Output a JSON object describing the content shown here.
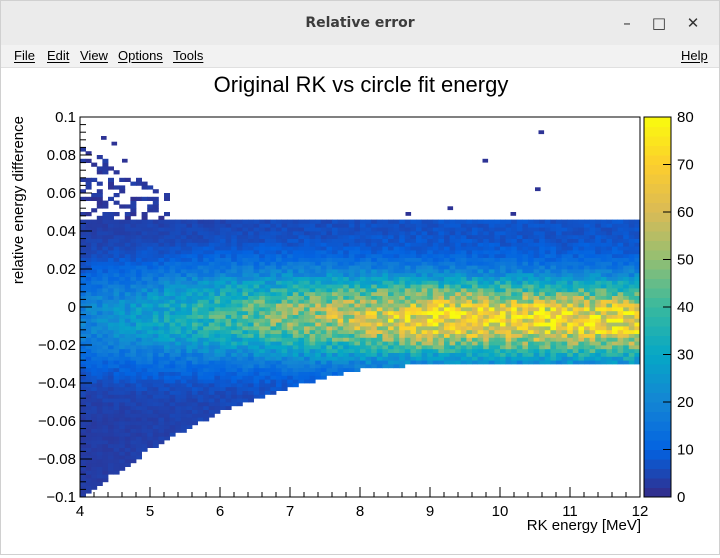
{
  "window": {
    "title": "Relative error",
    "controls": {
      "minimize": "–",
      "maximize": "□",
      "close": "✕"
    }
  },
  "menu": {
    "file": "File",
    "edit": "Edit",
    "view": "View",
    "options": "Options",
    "tools": "Tools",
    "help": "Help"
  },
  "chart_data": {
    "type": "heatmap",
    "title": "Original RK vs circle fit energy",
    "xlabel": "RK energy [MeV]",
    "ylabel": "relative energy difference",
    "xlim": [
      4,
      12
    ],
    "ylim": [
      -0.1,
      0.1
    ],
    "zlim": [
      0,
      80
    ],
    "x_ticks": [
      "4",
      "5",
      "6",
      "7",
      "8",
      "9",
      "10",
      "11",
      "12"
    ],
    "y_ticks": [
      "0.1",
      "0.08",
      "0.06",
      "0.04",
      "0.02",
      "0",
      "−0.02",
      "−0.04",
      "−0.06",
      "−0.08",
      "−0.1"
    ],
    "z_ticks": [
      "80",
      "70",
      "60",
      "50",
      "40",
      "30",
      "20",
      "10",
      "0"
    ],
    "nbins_x": 100,
    "nbins_y": 100,
    "colormap": "parula",
    "colors": [
      "#352a87",
      "#0363e1",
      "#1485d4",
      "#06a7c6",
      "#38b99e",
      "#92bf73",
      "#d9ba56",
      "#fcce2e",
      "#f9fb0e"
    ],
    "ridge": {
      "description_points_x": [
        4,
        6,
        8,
        10,
        12
      ],
      "center_y": [
        -0.006,
        -0.004,
        -0.005,
        -0.006,
        -0.007
      ],
      "peak_count": 62
    },
    "band_edges": {
      "upper_y": [
        0.045,
        0.045
      ],
      "lower_y_at_x": [
        [
          4,
          -0.1
        ],
        [
          5,
          -0.075
        ],
        [
          6,
          -0.055
        ],
        [
          7,
          -0.042
        ],
        [
          8,
          -0.033
        ],
        [
          9,
          -0.03
        ],
        [
          12,
          -0.03
        ]
      ]
    },
    "outliers": [
      [
        4.3,
        0.09
      ],
      [
        4.45,
        0.087
      ],
      [
        4.6,
        0.078
      ],
      [
        10.55,
        0.093
      ],
      [
        9.75,
        0.078
      ],
      [
        10.5,
        0.063
      ],
      [
        8.65,
        0.05
      ],
      [
        9.25,
        0.053
      ],
      [
        10.15,
        0.05
      ]
    ]
  }
}
